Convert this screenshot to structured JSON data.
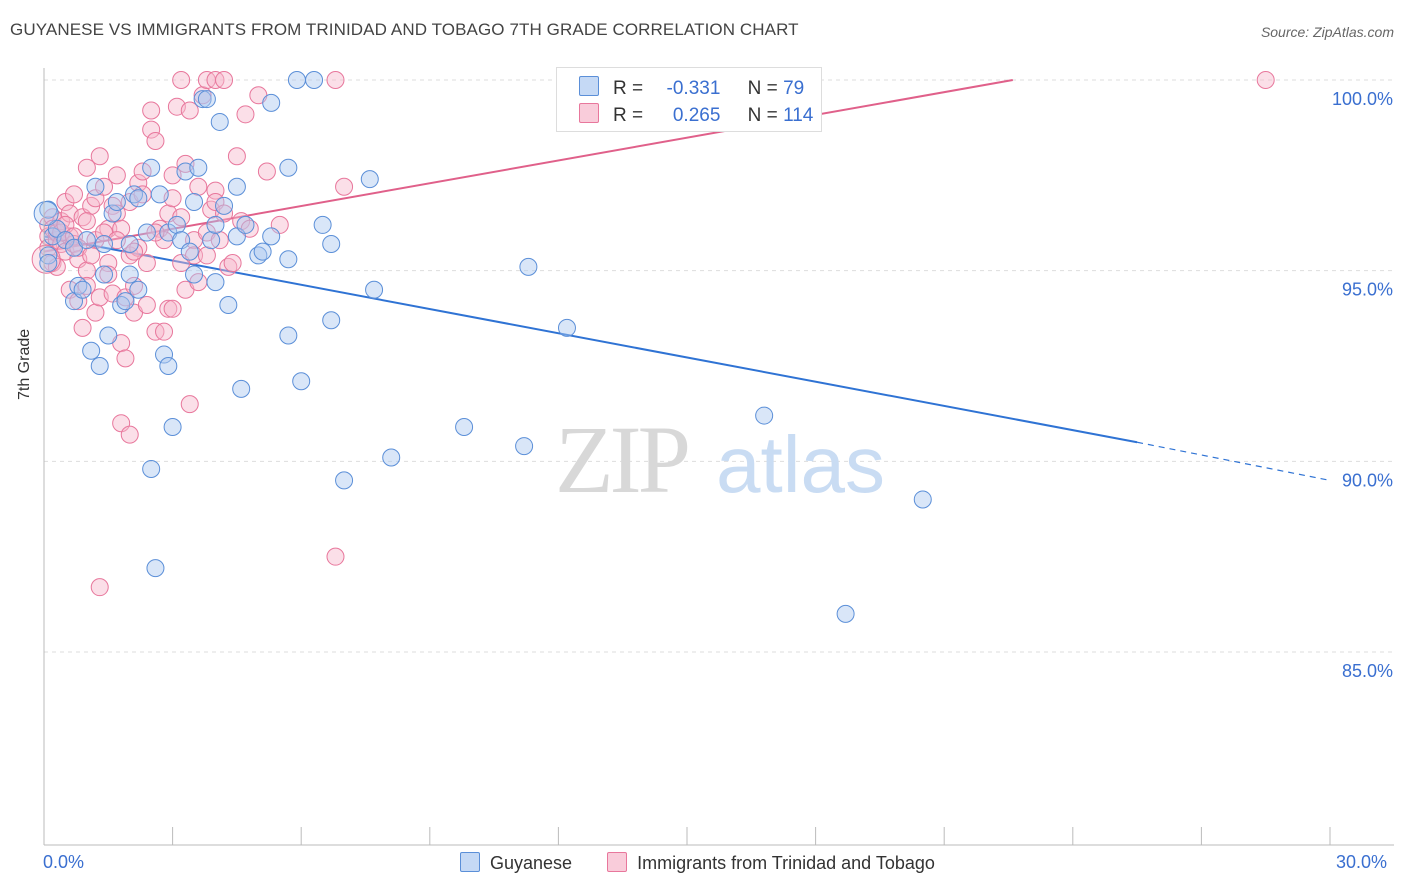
{
  "title": "GUYANESE VS IMMIGRANTS FROM TRINIDAD AND TOBAGO 7TH GRADE CORRELATION CHART",
  "source": "Source: ZipAtlas.com",
  "watermark": {
    "zip": "ZIP",
    "atlas": "atlas"
  },
  "legend_stats": {
    "r_label": "R =",
    "n_label": "N =",
    "blue": {
      "r": "-0.331",
      "n": "79"
    },
    "pink": {
      "r": "0.265",
      "n": "114"
    }
  },
  "colors": {
    "blue_fill": "#aac8f0",
    "blue_stroke": "#5b8fd8",
    "blue_line": "#2f73d4",
    "pink_fill": "#f6b8cb",
    "pink_stroke": "#e8779c",
    "pink_line": "#e0608a",
    "tick_text": "#3a6fd0",
    "grid": "#dddddd"
  },
  "chart_data": {
    "type": "scatter",
    "title": "GUYANESE VS IMMIGRANTS FROM TRINIDAD AND TOBAGO 7TH GRADE CORRELATION CHART",
    "xlabel": "",
    "ylabel": "7th Grade",
    "xlim": [
      0,
      30
    ],
    "ylim": [
      80.5,
      100.5
    ],
    "x_tick_labels": [
      "0.0%",
      "30.0%"
    ],
    "y_ticks": [
      85,
      90,
      95,
      100
    ],
    "y_tick_labels": [
      "85.0%",
      "90.0%",
      "95.0%",
      "100.0%"
    ],
    "grid": true,
    "legend_position": "bottom",
    "series": [
      {
        "name": "Guyanese",
        "r": -0.331,
        "n": 79,
        "trend": {
          "x": [
            0,
            25.5
          ],
          "y": [
            95.9,
            90.5
          ],
          "dashed_extension": [
            25.5,
            30,
            90.5,
            89.5
          ]
        },
        "points": [
          [
            0.1,
            96.6
          ],
          [
            0.1,
            95.4
          ],
          [
            0.1,
            95.2
          ],
          [
            0.2,
            95.9
          ],
          [
            0.3,
            96.1
          ],
          [
            0.5,
            95.8
          ],
          [
            0.7,
            94.2
          ],
          [
            0.7,
            95.6
          ],
          [
            0.8,
            94.6
          ],
          [
            0.9,
            94.5
          ],
          [
            1.0,
            95.8
          ],
          [
            1.1,
            92.9
          ],
          [
            1.2,
            97.2
          ],
          [
            1.3,
            92.5
          ],
          [
            1.4,
            94.9
          ],
          [
            1.4,
            95.7
          ],
          [
            1.5,
            93.3
          ],
          [
            1.6,
            96.5
          ],
          [
            1.7,
            96.8
          ],
          [
            1.8,
            94.1
          ],
          [
            1.9,
            94.2
          ],
          [
            2.0,
            94.9
          ],
          [
            2.0,
            95.7
          ],
          [
            2.1,
            97.0
          ],
          [
            2.2,
            94.5
          ],
          [
            2.2,
            96.9
          ],
          [
            2.4,
            96.0
          ],
          [
            2.5,
            97.7
          ],
          [
            2.5,
            89.8
          ],
          [
            2.6,
            87.2
          ],
          [
            2.7,
            97.0
          ],
          [
            2.8,
            92.8
          ],
          [
            2.9,
            92.5
          ],
          [
            2.9,
            96.0
          ],
          [
            3.0,
            90.9
          ],
          [
            3.1,
            96.2
          ],
          [
            3.2,
            95.8
          ],
          [
            3.3,
            97.6
          ],
          [
            3.4,
            95.5
          ],
          [
            3.5,
            96.8
          ],
          [
            3.5,
            94.9
          ],
          [
            3.6,
            97.7
          ],
          [
            3.7,
            99.5
          ],
          [
            3.8,
            99.5
          ],
          [
            3.9,
            95.8
          ],
          [
            4.0,
            96.2
          ],
          [
            4.0,
            94.7
          ],
          [
            4.1,
            98.9
          ],
          [
            4.2,
            96.7
          ],
          [
            4.3,
            94.1
          ],
          [
            4.5,
            97.2
          ],
          [
            4.5,
            95.9
          ],
          [
            4.6,
            91.9
          ],
          [
            4.7,
            96.2
          ],
          [
            5.0,
            95.4
          ],
          [
            5.1,
            95.5
          ],
          [
            5.3,
            95.9
          ],
          [
            5.3,
            99.4
          ],
          [
            5.7,
            95.3
          ],
          [
            5.7,
            97.7
          ],
          [
            5.7,
            93.3
          ],
          [
            5.9,
            100.0
          ],
          [
            6.0,
            92.1
          ],
          [
            6.3,
            100.0
          ],
          [
            6.5,
            96.2
          ],
          [
            6.7,
            95.7
          ],
          [
            6.7,
            93.7
          ],
          [
            7.0,
            89.5
          ],
          [
            7.6,
            97.4
          ],
          [
            7.7,
            94.5
          ],
          [
            8.1,
            90.1
          ],
          [
            9.8,
            90.9
          ],
          [
            11.2,
            90.4
          ],
          [
            11.3,
            95.1
          ],
          [
            12.2,
            93.5
          ],
          [
            16.8,
            91.2
          ],
          [
            18.7,
            86.0
          ],
          [
            20.5,
            89.0
          ],
          [
            17.4,
            100.0
          ]
        ]
      },
      {
        "name": "Immigrants from Trinidad and Tobago",
        "r": 0.265,
        "n": 114,
        "trend": {
          "x": [
            0,
            22.6
          ],
          "y": [
            95.5,
            100.0
          ]
        },
        "points": [
          [
            0.1,
            96.2
          ],
          [
            0.1,
            95.9
          ],
          [
            0.1,
            95.6
          ],
          [
            0.2,
            96.4
          ],
          [
            0.2,
            95.2
          ],
          [
            0.2,
            96.1
          ],
          [
            0.3,
            95.8
          ],
          [
            0.3,
            96.0
          ],
          [
            0.4,
            95.7
          ],
          [
            0.4,
            96.3
          ],
          [
            0.5,
            95.5
          ],
          [
            0.5,
            96.8
          ],
          [
            0.6,
            95.9
          ],
          [
            0.6,
            94.5
          ],
          [
            0.6,
            96.5
          ],
          [
            0.7,
            97.0
          ],
          [
            0.7,
            95.7
          ],
          [
            0.8,
            95.3
          ],
          [
            0.8,
            94.2
          ],
          [
            0.9,
            93.5
          ],
          [
            0.9,
            96.4
          ],
          [
            1.0,
            97.7
          ],
          [
            1.0,
            95.0
          ],
          [
            1.0,
            94.6
          ],
          [
            1.1,
            96.7
          ],
          [
            1.2,
            95.8
          ],
          [
            1.2,
            96.9
          ],
          [
            1.2,
            93.9
          ],
          [
            1.3,
            98.0
          ],
          [
            1.3,
            94.3
          ],
          [
            1.4,
            97.2
          ],
          [
            1.5,
            95.2
          ],
          [
            1.5,
            96.1
          ],
          [
            1.6,
            96.7
          ],
          [
            1.6,
            94.4
          ],
          [
            1.7,
            96.5
          ],
          [
            1.7,
            97.5
          ],
          [
            1.8,
            96.1
          ],
          [
            1.8,
            93.1
          ],
          [
            1.8,
            91.0
          ],
          [
            1.9,
            94.3
          ],
          [
            1.9,
            92.7
          ],
          [
            2.0,
            96.8
          ],
          [
            2.0,
            95.4
          ],
          [
            2.0,
            90.7
          ],
          [
            2.1,
            94.6
          ],
          [
            2.1,
            93.9
          ],
          [
            2.2,
            97.3
          ],
          [
            2.2,
            95.6
          ],
          [
            2.3,
            97.0
          ],
          [
            2.3,
            97.6
          ],
          [
            2.4,
            95.2
          ],
          [
            2.4,
            94.1
          ],
          [
            2.5,
            99.2
          ],
          [
            2.5,
            98.7
          ],
          [
            2.6,
            98.4
          ],
          [
            2.6,
            93.4
          ],
          [
            2.7,
            96.1
          ],
          [
            2.8,
            95.8
          ],
          [
            2.8,
            93.4
          ],
          [
            2.9,
            96.5
          ],
          [
            2.9,
            94.0
          ],
          [
            3.0,
            97.5
          ],
          [
            3.0,
            94.0
          ],
          [
            3.1,
            99.3
          ],
          [
            3.2,
            96.4
          ],
          [
            3.2,
            95.2
          ],
          [
            3.3,
            97.8
          ],
          [
            3.3,
            94.5
          ],
          [
            3.4,
            99.2
          ],
          [
            3.4,
            91.5
          ],
          [
            3.5,
            95.8
          ],
          [
            3.5,
            95.4
          ],
          [
            3.6,
            97.2
          ],
          [
            3.6,
            94.7
          ],
          [
            3.7,
            99.6
          ],
          [
            3.8,
            96.0
          ],
          [
            3.9,
            96.6
          ],
          [
            4.0,
            97.1
          ],
          [
            4.0,
            96.8
          ],
          [
            4.1,
            95.8
          ],
          [
            4.2,
            96.5
          ],
          [
            4.3,
            95.1
          ],
          [
            4.4,
            95.2
          ],
          [
            4.5,
            98.0
          ],
          [
            4.6,
            96.3
          ],
          [
            4.7,
            99.1
          ],
          [
            4.8,
            96.1
          ],
          [
            5.0,
            99.6
          ],
          [
            5.2,
            97.6
          ],
          [
            5.5,
            96.2
          ],
          [
            6.8,
            87.5
          ],
          [
            7.0,
            97.2
          ],
          [
            1.3,
            86.7
          ],
          [
            3.2,
            100.0
          ],
          [
            3.8,
            100.0
          ],
          [
            4.0,
            100.0
          ],
          [
            4.2,
            100.0
          ],
          [
            6.8,
            100.0
          ],
          [
            28.5,
            100.0
          ],
          [
            0.3,
            95.1
          ],
          [
            0.4,
            96.0
          ],
          [
            0.5,
            96.2
          ],
          [
            0.7,
            95.9
          ],
          [
            0.8,
            95.6
          ],
          [
            1.0,
            96.3
          ],
          [
            1.1,
            95.4
          ],
          [
            1.4,
            96.0
          ],
          [
            1.5,
            94.9
          ],
          [
            1.7,
            95.8
          ],
          [
            2.1,
            95.5
          ],
          [
            2.6,
            96.0
          ],
          [
            3.0,
            96.9
          ],
          [
            3.8,
            95.4
          ]
        ]
      }
    ]
  },
  "axis": {
    "y_title": "7th Grade",
    "x_min_label": "0.0%",
    "x_max_label": "30.0%"
  },
  "bottom_legend": [
    {
      "label": "Guyanese"
    },
    {
      "label": "Immigrants from Trinidad and Tobago"
    }
  ]
}
